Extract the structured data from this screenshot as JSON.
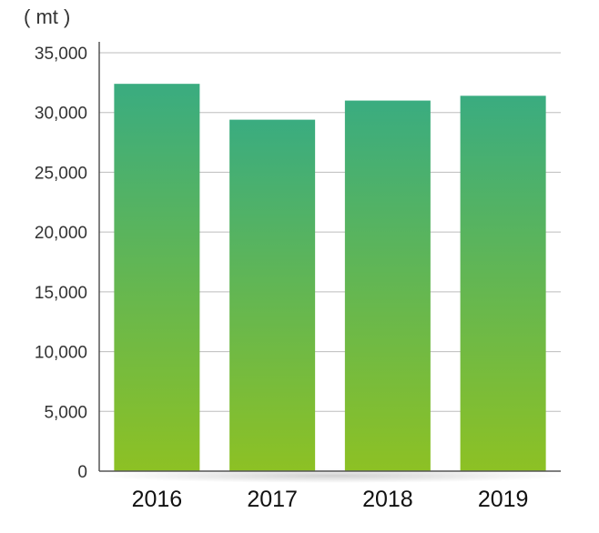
{
  "chart_data": {
    "type": "bar",
    "unit_label": "( mt )",
    "categories": [
      "2016",
      "2017",
      "2018",
      "2019"
    ],
    "values": [
      32400,
      29400,
      31000,
      31400
    ],
    "ylim": [
      0,
      35000
    ],
    "yticks": [
      0,
      5000,
      10000,
      15000,
      20000,
      25000,
      30000,
      35000
    ],
    "ytick_labels": [
      "0",
      "5,000",
      "10,000",
      "15,000",
      "20,000",
      "25,000",
      "30,000",
      "35,000"
    ],
    "grid": true,
    "legend": "none",
    "colors": {
      "bar_top": "#3aac80",
      "bar_bottom": "#8dc124",
      "grid": "#bdbdbd",
      "axis": "#555555"
    }
  }
}
